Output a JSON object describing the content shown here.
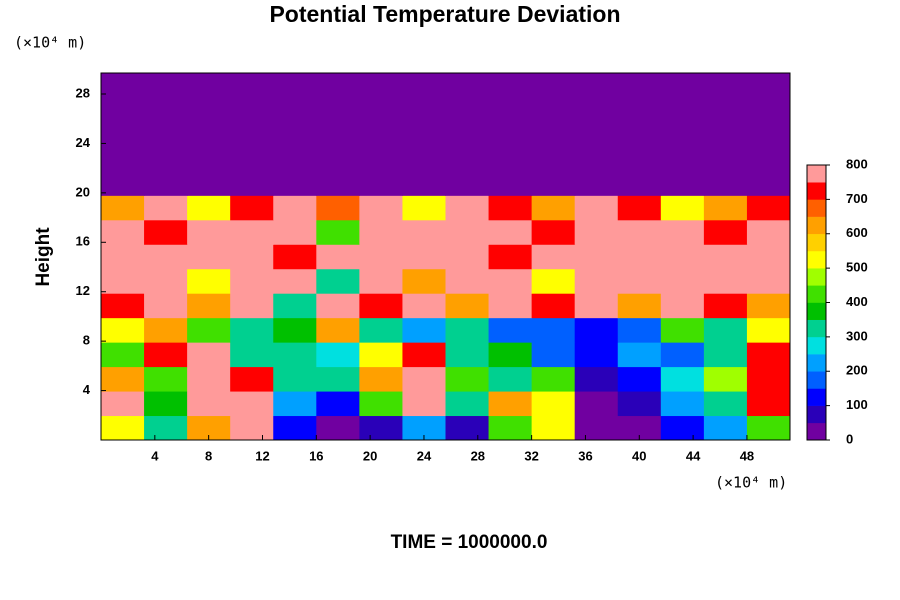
{
  "chart_data": {
    "type": "heatmap",
    "title": "Potential Temperature Deviation",
    "ylabel": "Height",
    "xunit": "(×10⁴ m)",
    "yunit": "(×10⁴ m)",
    "footer": "TIME = 1000000.0",
    "xlim": [
      0,
      51.2
    ],
    "xticks": [
      4,
      8,
      12,
      16,
      20,
      24,
      28,
      32,
      36,
      40,
      44,
      48
    ],
    "ylim": [
      0,
      29.7
    ],
    "yticks": [
      4,
      8,
      12,
      16,
      20,
      24,
      28
    ],
    "zlim": [
      0,
      800
    ],
    "zticks": [
      0,
      100,
      200,
      300,
      400,
      500,
      600,
      700,
      800
    ],
    "colors": [
      "#7000a0",
      "#2a00b8",
      "#0000ff",
      "#0060ff",
      "#00a0ff",
      "#00e0e0",
      "#00d090",
      "#00c000",
      "#40e000",
      "#a0ff00",
      "#ffff00",
      "#ffd000",
      "#ffa000",
      "#ff6000",
      "#ff0000",
      "#ff9a9a"
    ],
    "z": [
      [
        500,
        300,
        600,
        800,
        100,
        0,
        50,
        200,
        50,
        400,
        500,
        0,
        0,
        100,
        200,
        400
      ],
      [
        800,
        350,
        800,
        800,
        200,
        100,
        400,
        800,
        300,
        600,
        500,
        0,
        50,
        200,
        300,
        700
      ],
      [
        600,
        400,
        800,
        700,
        300,
        300,
        600,
        800,
        400,
        300,
        400,
        50,
        100,
        250,
        450,
        700
      ],
      [
        400,
        700,
        800,
        300,
        300,
        250,
        500,
        700,
        300,
        350,
        150,
        100,
        200,
        150,
        300,
        700
      ],
      [
        500,
        600,
        400,
        300,
        350,
        600,
        300,
        200,
        300,
        150,
        150,
        100,
        150,
        400,
        300,
        500
      ],
      [
        700,
        800,
        600,
        800,
        300,
        800,
        700,
        800,
        600,
        800,
        700,
        800,
        600,
        800,
        700,
        600
      ],
      [
        800,
        800,
        500,
        800,
        800,
        300,
        800,
        600,
        800,
        800,
        500,
        800,
        800,
        800,
        800,
        800
      ],
      [
        800,
        800,
        800,
        800,
        700,
        800,
        800,
        800,
        800,
        700,
        800,
        800,
        800,
        800,
        800,
        800
      ],
      [
        800,
        700,
        800,
        800,
        800,
        400,
        800,
        800,
        800,
        800,
        700,
        800,
        800,
        800,
        700,
        800
      ],
      [
        600,
        800,
        500,
        700,
        800,
        650,
        800,
        500,
        800,
        700,
        600,
        800,
        700,
        500,
        600,
        700
      ],
      [
        0,
        0,
        0,
        0,
        0,
        0,
        0,
        0,
        0,
        0,
        0,
        0,
        0,
        0,
        0,
        0
      ],
      [
        0,
        0,
        0,
        0,
        0,
        0,
        0,
        0,
        0,
        0,
        0,
        0,
        0,
        0,
        0,
        0
      ],
      [
        0,
        0,
        0,
        0,
        0,
        0,
        0,
        0,
        0,
        0,
        0,
        0,
        0,
        0,
        0,
        0
      ],
      [
        0,
        0,
        0,
        0,
        0,
        0,
        0,
        0,
        0,
        0,
        0,
        0,
        0,
        0,
        0,
        0
      ],
      [
        0,
        0,
        0,
        0,
        0,
        0,
        0,
        0,
        0,
        0,
        0,
        0,
        0,
        0,
        0,
        0
      ]
    ]
  }
}
